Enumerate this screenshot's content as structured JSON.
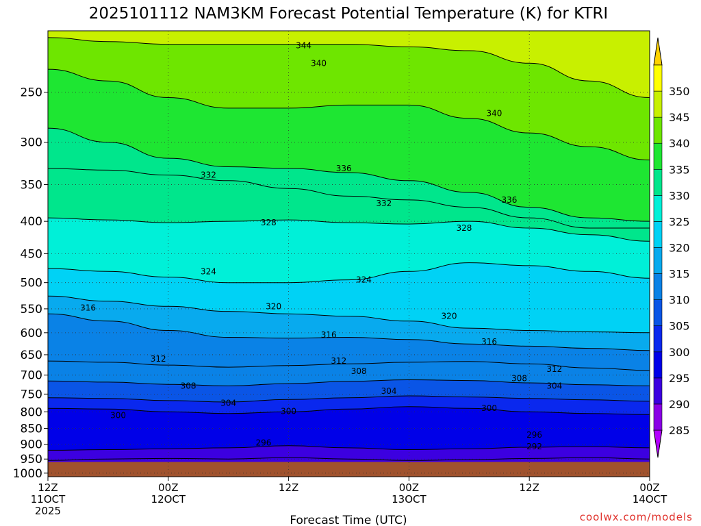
{
  "chart_data": {
    "type": "heatmap",
    "title": "2025101112 NAM3KM Forecast Potential Temperature (K) for KTRI",
    "xlabel": "Forecast Time (UTC)",
    "ylabel": "",
    "credit": "coolwx.com/models",
    "x_ticks": [
      {
        "hour": 0,
        "line1": "12Z",
        "line2": "11OCT",
        "line3": "2025"
      },
      {
        "hour": 12,
        "line1": "00Z",
        "line2": "12OCT",
        "line3": ""
      },
      {
        "hour": 24,
        "line1": "12Z",
        "line2": "",
        "line3": ""
      },
      {
        "hour": 36,
        "line1": "00Z",
        "line2": "13OCT",
        "line3": ""
      },
      {
        "hour": 48,
        "line1": "12Z",
        "line2": "",
        "line3": ""
      },
      {
        "hour": 60,
        "line1": "00Z",
        "line2": "14OCT",
        "line3": ""
      }
    ],
    "xlim": [
      0,
      60
    ],
    "y_ticks": [
      250,
      300,
      350,
      400,
      450,
      500,
      550,
      600,
      650,
      700,
      750,
      800,
      850,
      900,
      950,
      1000
    ],
    "ylim_hpa": [
      200,
      1013
    ],
    "y_scale": "log-pressure",
    "ground_level_hpa": 960,
    "ground_color": "#a0522d",
    "grid": true,
    "colorbar": {
      "levels": [
        285,
        290,
        295,
        300,
        305,
        310,
        315,
        320,
        325,
        330,
        335,
        340,
        345,
        350
      ],
      "colors": [
        "#8a00e6",
        "#3c00e0",
        "#0000e8",
        "#0a28ee",
        "#0a55e6",
        "#0a82e6",
        "#08aaee",
        "#00d2f5",
        "#00f0d8",
        "#00e68c",
        "#1ee632",
        "#6ee600",
        "#c8f000",
        "#ffff00"
      ],
      "extend_below_color": "#b400ff",
      "extend_above_color": "#ffd200"
    },
    "time_hours": [
      0,
      6,
      12,
      18,
      24,
      30,
      36,
      42,
      48,
      54,
      60
    ],
    "isentrope_pressure_hpa": [
      {
        "theta": 292,
        "p": [
          955,
          950,
          948,
          950,
          945,
          950,
          955,
          952,
          948,
          945,
          950
        ]
      },
      {
        "theta": 296,
        "p": [
          920,
          918,
          915,
          912,
          905,
          912,
          918,
          915,
          910,
          908,
          912
        ]
      },
      {
        "theta": 300,
        "p": [
          790,
          792,
          800,
          805,
          800,
          792,
          785,
          790,
          800,
          805,
          808
        ]
      },
      {
        "theta": 304,
        "p": [
          760,
          762,
          768,
          772,
          765,
          760,
          755,
          758,
          762,
          766,
          770
        ]
      },
      {
        "theta": 308,
        "p": [
          715,
          718,
          724,
          728,
          722,
          716,
          712,
          714,
          720,
          725,
          728
        ]
      },
      {
        "theta": 312,
        "p": [
          665,
          668,
          675,
          680,
          676,
          672,
          668,
          666,
          672,
          682,
          688
        ]
      },
      {
        "theta": 316,
        "p": [
          560,
          575,
          595,
          610,
          612,
          610,
          615,
          625,
          630,
          635,
          640
        ]
      },
      {
        "theta": 320,
        "p": [
          525,
          535,
          545,
          555,
          560,
          565,
          575,
          590,
          595,
          598,
          600
        ]
      },
      {
        "theta": 324,
        "p": [
          475,
          480,
          490,
          500,
          500,
          495,
          480,
          465,
          470,
          480,
          492
        ]
      },
      {
        "theta": 328,
        "p": [
          395,
          398,
          402,
          400,
          398,
          402,
          404,
          400,
          410,
          420,
          430
        ]
      },
      {
        "theta": 332,
        "p": [
          330,
          332,
          338,
          345,
          355,
          365,
          370,
          380,
          395,
          410,
          410
        ]
      },
      {
        "theta": 336,
        "p": [
          285,
          300,
          318,
          328,
          330,
          335,
          345,
          360,
          380,
          395,
          400
        ]
      },
      {
        "theta": 340,
        "p": [
          230,
          240,
          255,
          265,
          265,
          262,
          262,
          275,
          290,
          305,
          320
        ]
      },
      {
        "theta": 344,
        "p": [
          205,
          208,
          210,
          210,
          210,
          210,
          212,
          215,
          225,
          240,
          255
        ]
      }
    ],
    "contour_labels": [
      {
        "text": "344",
        "hour": 25.5,
        "p": 211
      },
      {
        "text": "340",
        "hour": 27,
        "p": 225
      },
      {
        "text": "340",
        "hour": 44.5,
        "p": 270
      },
      {
        "text": "336",
        "hour": 29.5,
        "p": 330
      },
      {
        "text": "336",
        "hour": 46,
        "p": 370
      },
      {
        "text": "332",
        "hour": 16,
        "p": 338
      },
      {
        "text": "332",
        "hour": 33.5,
        "p": 375
      },
      {
        "text": "328",
        "hour": 22,
        "p": 402
      },
      {
        "text": "328",
        "hour": 41.5,
        "p": 410
      },
      {
        "text": "324",
        "hour": 16,
        "p": 480
      },
      {
        "text": "324",
        "hour": 31.5,
        "p": 495
      },
      {
        "text": "320",
        "hour": 22.5,
        "p": 545
      },
      {
        "text": "320",
        "hour": 40,
        "p": 565
      },
      {
        "text": "316",
        "hour": 4,
        "p": 548
      },
      {
        "text": "316",
        "hour": 28,
        "p": 605
      },
      {
        "text": "316",
        "hour": 44,
        "p": 620
      },
      {
        "text": "312",
        "hour": 11,
        "p": 660
      },
      {
        "text": "312",
        "hour": 29,
        "p": 665
      },
      {
        "text": "312",
        "hour": 50.5,
        "p": 685
      },
      {
        "text": "308",
        "hour": 14,
        "p": 728
      },
      {
        "text": "308",
        "hour": 31,
        "p": 690
      },
      {
        "text": "308",
        "hour": 47,
        "p": 708
      },
      {
        "text": "304",
        "hour": 18,
        "p": 775
      },
      {
        "text": "304",
        "hour": 34,
        "p": 742
      },
      {
        "text": "304",
        "hour": 50.5,
        "p": 728
      },
      {
        "text": "300",
        "hour": 7,
        "p": 810
      },
      {
        "text": "300",
        "hour": 24,
        "p": 798
      },
      {
        "text": "300",
        "hour": 44,
        "p": 790
      },
      {
        "text": "296",
        "hour": 21.5,
        "p": 895
      },
      {
        "text": "296",
        "hour": 48.5,
        "p": 870
      },
      {
        "text": "292",
        "hour": 48.5,
        "p": 908
      }
    ]
  }
}
